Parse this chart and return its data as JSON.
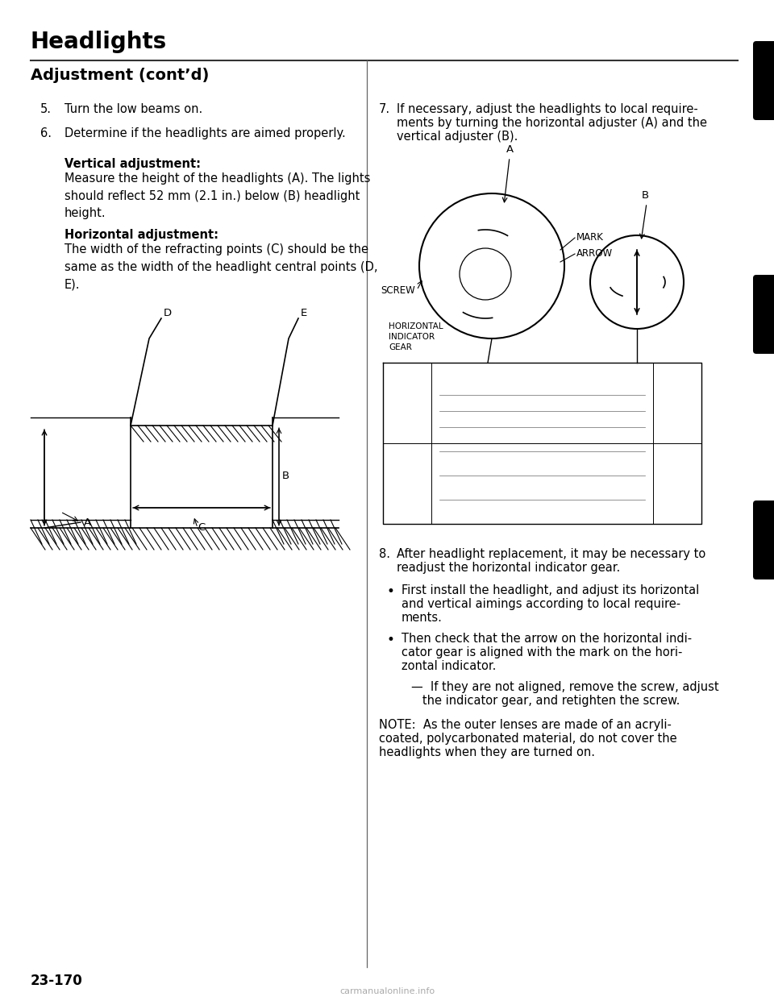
{
  "page_title": "Headlights",
  "section_title": "Adjustment (cont’d)",
  "bg_color": "#ffffff",
  "text_color": "#000000",
  "item5_num": "5.",
  "item5": "Turn the low beams on.",
  "item6_num": "6.",
  "item6": "Determine if the headlights are aimed properly.",
  "vert_title": "Vertical adjustment:",
  "vert_text": "Measure the height of the headlights (A). The lights\nshould reflect 52 mm (2.1 in.) below (B) headlight\nheight.",
  "horiz_title": "Horizontal adjustment:",
  "horiz_text": "The width of the refracting points (C) should be the\nsame as the width of the headlight central points (D,\nE).",
  "item7_num": "7.",
  "item7_line1": "If necessary, adjust the headlights to local require-",
  "item7_line2": "ments by turning the horizontal adjuster (A) and the",
  "item7_line3": "vertical adjuster (B).",
  "item8_num": "8.",
  "item8_line1": "After headlight replacement, it may be necessary to",
  "item8_line2": "readjust the horizontal indicator gear.",
  "bullet1_line1": "First install the headlight, and adjust its horizontal",
  "bullet1_line2": "and vertical aimings according to local require-",
  "bullet1_line3": "ments.",
  "bullet2_line1": "Then check that the arrow on the horizontal indi-",
  "bullet2_line2": "cator gear is aligned with the mark on the hori-",
  "bullet2_line3": "zontal indicator.",
  "dash_line1": "—  If they are not aligned, remove the screw, adjust",
  "dash_line2": "   the indicator gear, and retighten the screw.",
  "note_line1": "NOTE:  As the outer lenses are made of an acryli-",
  "note_line2": "coated, polycarbonated material, do not cover the",
  "note_line3": "headlights when they are turned on.",
  "page_number": "23-170",
  "footer_text": "carmanualonline.info",
  "label_mark": "MARK",
  "label_arrow": "ARROW",
  "label_screw": "SCREW",
  "label_hig": "HORIZONTAL\nINDICATOR\nGEAR"
}
